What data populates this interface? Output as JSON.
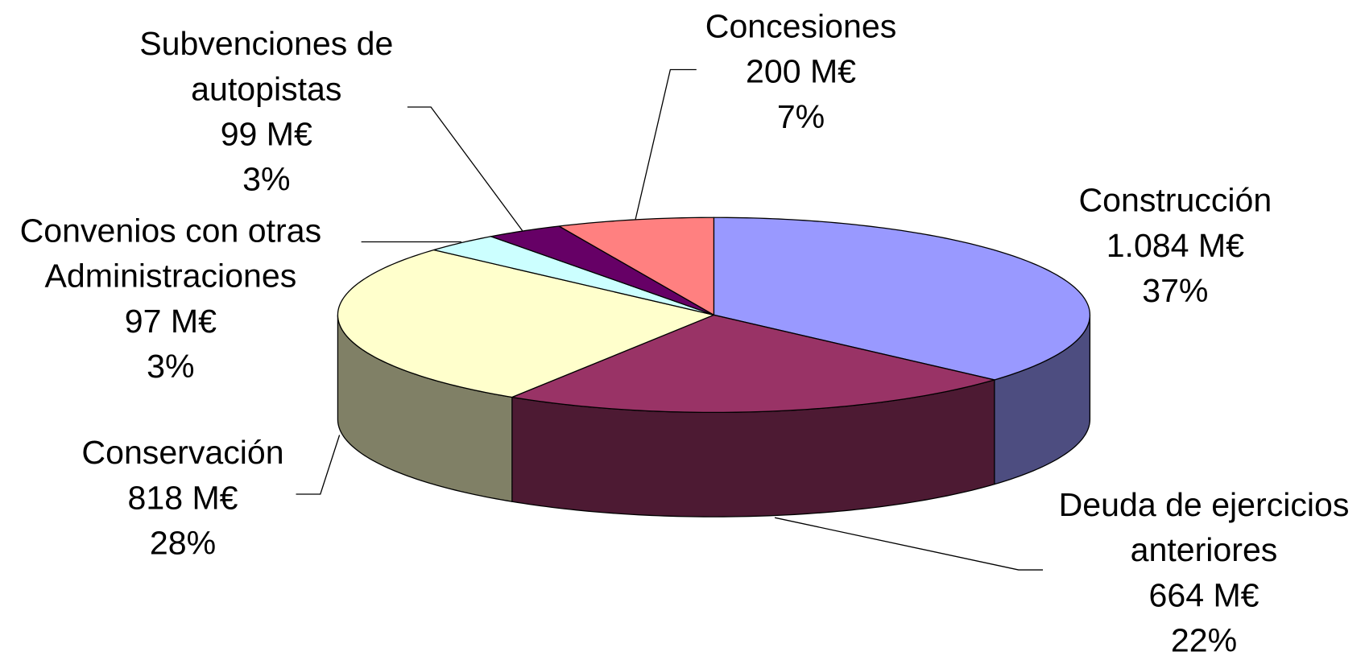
{
  "chart_data": {
    "type": "pie3d",
    "categories": [
      "Construcción",
      "Deuda de ejercicios anteriores",
      "Conservación",
      "Convenios con otras Administraciones",
      "Subvenciones de autopistas",
      "Concesiones"
    ],
    "values": [
      1084,
      664,
      818,
      97,
      99,
      200
    ],
    "value_labels": [
      "1.084 M€",
      "664 M€",
      "818 M€",
      "97 M€",
      "99 M€",
      "200 M€"
    ],
    "percentages": [
      37,
      22,
      28,
      3,
      3,
      7
    ],
    "percentage_labels": [
      "37%",
      "22%",
      "28%",
      "3%",
      "3%",
      "7%"
    ],
    "colors": [
      "#9999ff",
      "#993366",
      "#ffffcc",
      "#ccffff",
      "#660066",
      "#ff8080"
    ]
  }
}
